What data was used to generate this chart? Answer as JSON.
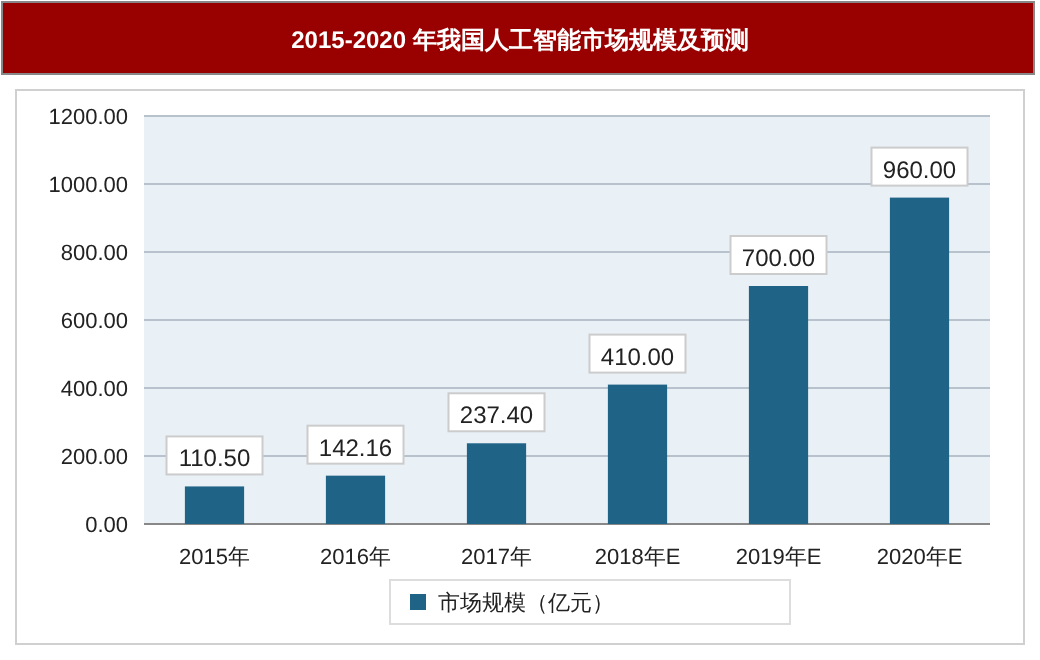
{
  "chart_data": {
    "type": "bar",
    "title": "2015-2020 年我国人工智能市场规模及预测",
    "categories": [
      "2015年",
      "2016年",
      "2017年",
      "2018年E",
      "2019年E",
      "2020年E"
    ],
    "series": [
      {
        "name": "市场规模（亿元）",
        "color": "#1f6387",
        "values": [
          110.5,
          142.16,
          237.4,
          410,
          700,
          960
        ],
        "value_labels": [
          "110.50",
          "142.16",
          "237.40",
          "410.00",
          "700.00",
          "960.00"
        ]
      }
    ],
    "ylim": [
      0,
      1200
    ],
    "yticks": [
      {
        "value": 0,
        "label": "0.00"
      },
      {
        "value": 200,
        "label": "200.00"
      },
      {
        "value": 400,
        "label": "400.00"
      },
      {
        "value": 600,
        "label": "600.00"
      },
      {
        "value": 800,
        "label": "800.00"
      },
      {
        "value": 1000,
        "label": "1000.00"
      },
      {
        "value": 1200,
        "label": "1200.00"
      }
    ],
    "grid": "y",
    "legend": "bottom"
  }
}
